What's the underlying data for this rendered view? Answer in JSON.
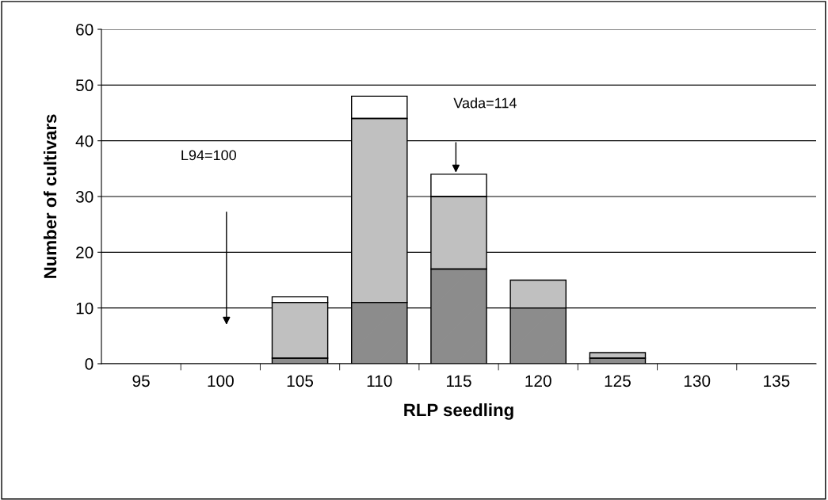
{
  "chart_data": {
    "type": "bar",
    "stacked": true,
    "xlabel": "RLP seedling",
    "ylabel": "Number of cultivars",
    "categories": [
      "95",
      "100",
      "105",
      "110",
      "115",
      "120",
      "125",
      "130",
      "135"
    ],
    "series": [
      {
        "color": "#8c8c8c",
        "values": [
          null,
          null,
          1,
          11,
          17,
          10,
          1,
          null,
          null
        ]
      },
      {
        "color": "#c0c0c0",
        "values": [
          null,
          null,
          10,
          33,
          13,
          5,
          1,
          null,
          null
        ]
      },
      {
        "color": "#ffffff",
        "values": [
          null,
          null,
          1,
          4,
          4,
          null,
          null,
          null,
          null
        ]
      }
    ],
    "ylim": [
      0,
      60
    ],
    "yticks": [
      0,
      10,
      20,
      30,
      40,
      50,
      60
    ],
    "grid": "y",
    "legend": false,
    "annotations": [
      "L94=100",
      "Vada=114"
    ]
  }
}
